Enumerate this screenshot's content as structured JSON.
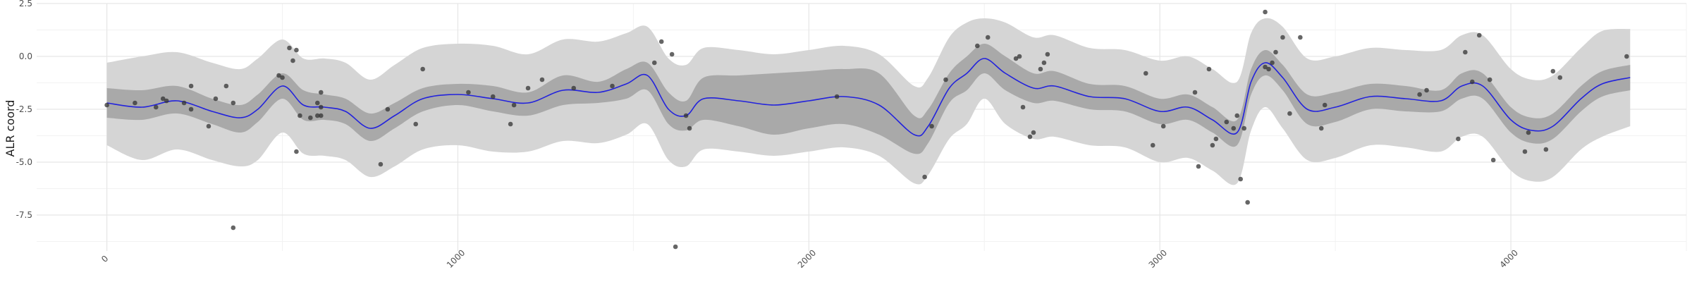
{
  "chart_data": {
    "type": "line",
    "title": "",
    "xlabel": "",
    "ylabel": "ALR coord",
    "xlim": [
      -200,
      4500
    ],
    "ylim": [
      -9.2,
      2.5
    ],
    "grid": true,
    "x_ticks": [
      {
        "value": 0,
        "label": "0"
      },
      {
        "value": 1000,
        "label": "1000"
      },
      {
        "value": 2000,
        "label": "2000"
      },
      {
        "value": 3000,
        "label": "3000"
      },
      {
        "value": 4000,
        "label": "4000"
      }
    ],
    "y_ticks": [
      {
        "value": 2.5,
        "label": "2.5"
      },
      {
        "value": 0,
        "label": "0.0"
      },
      {
        "value": -2.5,
        "label": "-2.5"
      },
      {
        "value": -5,
        "label": "-5.0"
      },
      {
        "value": -7.5,
        "label": "-7.5"
      }
    ],
    "colors": {
      "line": "#2222dd",
      "inner_band": "#a9a9a9",
      "outer_band": "#d5d5d5",
      "points": "#333333",
      "grid_major": "#e6e6e6",
      "grid_minor": "#f2f2f2"
    },
    "series": [
      {
        "kind": "smooth-mean",
        "x": [
          0,
          100,
          200,
          300,
          380,
          430,
          500,
          560,
          620,
          680,
          750,
          820,
          900,
          1000,
          1100,
          1200,
          1300,
          1400,
          1480,
          1540,
          1600,
          1650,
          1700,
          1800,
          1900,
          2000,
          2100,
          2200,
          2300,
          2340,
          2400,
          2450,
          2500,
          2560,
          2640,
          2700,
          2800,
          2900,
          3000,
          3080,
          3150,
          3220,
          3260,
          3300,
          3350,
          3420,
          3500,
          3600,
          3700,
          3800,
          3860,
          3920,
          4000,
          4060,
          4120,
          4200,
          4260,
          4340
        ],
        "y": [
          -2.2,
          -2.4,
          -2.1,
          -2.6,
          -2.9,
          -2.5,
          -1.4,
          -2.3,
          -2.4,
          -2.6,
          -3.4,
          -2.8,
          -2.0,
          -1.8,
          -2.0,
          -2.2,
          -1.6,
          -1.7,
          -1.3,
          -0.9,
          -2.5,
          -2.8,
          -2.0,
          -2.1,
          -2.3,
          -2.1,
          -1.9,
          -2.3,
          -3.7,
          -3.3,
          -1.5,
          -0.8,
          -0.1,
          -0.8,
          -1.5,
          -1.4,
          -1.9,
          -2.0,
          -2.6,
          -2.4,
          -3.0,
          -3.6,
          -1.2,
          -0.3,
          -1.0,
          -2.5,
          -2.4,
          -1.9,
          -2.0,
          -2.1,
          -1.4,
          -1.4,
          -3.0,
          -3.5,
          -3.3,
          -2.0,
          -1.3,
          -1.0
        ],
        "inner_band": [
          [
            -1.5,
            -2.9
          ],
          [
            -1.6,
            -3.0
          ],
          [
            -1.4,
            -2.7
          ],
          [
            -2.0,
            -3.2
          ],
          [
            -2.3,
            -3.6
          ],
          [
            -1.8,
            -3.1
          ],
          [
            -0.8,
            -2.0
          ],
          [
            -1.6,
            -3.0
          ],
          [
            -1.8,
            -3.0
          ],
          [
            -2.0,
            -3.2
          ],
          [
            -2.7,
            -4.0
          ],
          [
            -2.2,
            -3.4
          ],
          [
            -1.5,
            -2.6
          ],
          [
            -1.3,
            -2.3
          ],
          [
            -1.4,
            -2.6
          ],
          [
            -1.7,
            -2.8
          ],
          [
            -0.9,
            -2.3
          ],
          [
            -1.2,
            -2.2
          ],
          [
            -0.6,
            -2.0
          ],
          [
            -0.3,
            -1.6
          ],
          [
            -1.7,
            -3.2
          ],
          [
            -2.1,
            -3.5
          ],
          [
            -1.0,
            -3.0
          ],
          [
            -0.9,
            -3.3
          ],
          [
            -0.8,
            -3.7
          ],
          [
            -0.7,
            -3.4
          ],
          [
            -0.6,
            -3.2
          ],
          [
            -0.8,
            -3.7
          ],
          [
            -2.8,
            -4.6
          ],
          [
            -2.5,
            -4.1
          ],
          [
            -0.8,
            -2.2
          ],
          [
            0.0,
            -1.6
          ],
          [
            0.6,
            -0.8
          ],
          [
            0.0,
            -1.6
          ],
          [
            -0.8,
            -2.2
          ],
          [
            -0.7,
            -2.1
          ],
          [
            -1.3,
            -2.5
          ],
          [
            -1.4,
            -2.6
          ],
          [
            -2.0,
            -3.2
          ],
          [
            -1.8,
            -3.0
          ],
          [
            -2.4,
            -3.6
          ],
          [
            -3.0,
            -4.2
          ],
          [
            -0.6,
            -1.8
          ],
          [
            0.3,
            -0.9
          ],
          [
            -0.4,
            -1.6
          ],
          [
            -1.8,
            -3.2
          ],
          [
            -1.7,
            -3.1
          ],
          [
            -1.3,
            -2.5
          ],
          [
            -1.4,
            -2.6
          ],
          [
            -1.6,
            -2.6
          ],
          [
            -0.8,
            -2.0
          ],
          [
            -0.8,
            -2.0
          ],
          [
            -2.4,
            -3.6
          ],
          [
            -2.9,
            -4.1
          ],
          [
            -2.7,
            -3.9
          ],
          [
            -1.4,
            -2.6
          ],
          [
            -0.7,
            -1.9
          ],
          [
            -0.4,
            -1.6
          ]
        ],
        "outer_band": [
          [
            -0.3,
            -4.2
          ],
          [
            0.0,
            -4.9
          ],
          [
            0.2,
            -4.4
          ],
          [
            -0.3,
            -4.9
          ],
          [
            -0.6,
            -5.2
          ],
          [
            -0.1,
            -4.9
          ],
          [
            0.8,
            -3.6
          ],
          [
            -0.1,
            -4.6
          ],
          [
            -0.1,
            -4.7
          ],
          [
            -0.3,
            -4.9
          ],
          [
            -1.1,
            -5.7
          ],
          [
            -0.4,
            -5.2
          ],
          [
            0.4,
            -4.4
          ],
          [
            0.6,
            -4.2
          ],
          [
            0.5,
            -4.5
          ],
          [
            0.1,
            -4.5
          ],
          [
            0.8,
            -4.0
          ],
          [
            0.7,
            -4.1
          ],
          [
            1.1,
            -3.7
          ],
          [
            1.4,
            -3.2
          ],
          [
            -0.1,
            -4.9
          ],
          [
            -0.4,
            -5.2
          ],
          [
            0.4,
            -4.4
          ],
          [
            0.3,
            -4.5
          ],
          [
            0.1,
            -4.7
          ],
          [
            0.3,
            -4.5
          ],
          [
            0.5,
            -4.3
          ],
          [
            0.1,
            -4.7
          ],
          [
            -1.4,
            -6.0
          ],
          [
            -1.0,
            -5.6
          ],
          [
            0.9,
            -3.9
          ],
          [
            1.6,
            -3.2
          ],
          [
            1.8,
            -2.0
          ],
          [
            1.6,
            -3.2
          ],
          [
            0.9,
            -3.9
          ],
          [
            1.0,
            -3.8
          ],
          [
            0.4,
            -4.2
          ],
          [
            0.3,
            -4.3
          ],
          [
            -0.2,
            -5.0
          ],
          [
            0.0,
            -4.8
          ],
          [
            -0.6,
            -5.4
          ],
          [
            -1.2,
            -6.0
          ],
          [
            1.1,
            -3.5
          ],
          [
            1.8,
            -2.4
          ],
          [
            1.4,
            -3.4
          ],
          [
            -0.1,
            -4.9
          ],
          [
            0.0,
            -4.8
          ],
          [
            0.4,
            -4.2
          ],
          [
            0.3,
            -4.3
          ],
          [
            0.3,
            -4.5
          ],
          [
            1.0,
            -3.8
          ],
          [
            1.0,
            -3.8
          ],
          [
            -0.6,
            -5.4
          ],
          [
            -1.1,
            -5.9
          ],
          [
            -0.9,
            -5.7
          ],
          [
            0.4,
            -4.4
          ],
          [
            1.2,
            -3.8
          ],
          [
            1.3,
            -3.3
          ]
        ]
      },
      {
        "kind": "observations",
        "points": [
          [
            0,
            -2.3
          ],
          [
            80,
            -2.2
          ],
          [
            140,
            -2.4
          ],
          [
            160,
            -2.0
          ],
          [
            170,
            -2.1
          ],
          [
            220,
            -2.2
          ],
          [
            240,
            -1.4
          ],
          [
            240,
            -2.5
          ],
          [
            290,
            -3.3
          ],
          [
            310,
            -2.0
          ],
          [
            340,
            -1.4
          ],
          [
            360,
            -2.2
          ],
          [
            360,
            -8.1
          ],
          [
            490,
            -0.9
          ],
          [
            500,
            -1.0
          ],
          [
            520,
            0.4
          ],
          [
            540,
            0.3
          ],
          [
            530,
            -0.2
          ],
          [
            550,
            -2.8
          ],
          [
            540,
            -4.5
          ],
          [
            580,
            -2.9
          ],
          [
            600,
            -2.8
          ],
          [
            610,
            -1.7
          ],
          [
            600,
            -2.2
          ],
          [
            610,
            -2.4
          ],
          [
            610,
            -2.8
          ],
          [
            780,
            -5.1
          ],
          [
            800,
            -2.5
          ],
          [
            880,
            -3.2
          ],
          [
            900,
            -0.6
          ],
          [
            1030,
            -1.7
          ],
          [
            1100,
            -1.9
          ],
          [
            1150,
            -3.2
          ],
          [
            1160,
            -2.3
          ],
          [
            1200,
            -1.5
          ],
          [
            1240,
            -1.1
          ],
          [
            1330,
            -1.5
          ],
          [
            1440,
            -1.4
          ],
          [
            1560,
            -0.3
          ],
          [
            1580,
            0.7
          ],
          [
            1610,
            0.1
          ],
          [
            1620,
            -9.0
          ],
          [
            1650,
            -2.8
          ],
          [
            1660,
            -3.4
          ],
          [
            2080,
            -1.9
          ],
          [
            2330,
            -5.7
          ],
          [
            2350,
            -3.3
          ],
          [
            2390,
            -1.1
          ],
          [
            2480,
            0.5
          ],
          [
            2510,
            0.9
          ],
          [
            2590,
            -0.1
          ],
          [
            2600,
            0.0
          ],
          [
            2610,
            -2.4
          ],
          [
            2630,
            -3.8
          ],
          [
            2640,
            -3.6
          ],
          [
            2660,
            -0.6
          ],
          [
            2670,
            -0.3
          ],
          [
            2680,
            0.1
          ],
          [
            2960,
            -0.8
          ],
          [
            2980,
            -4.2
          ],
          [
            3010,
            -3.3
          ],
          [
            3100,
            -1.7
          ],
          [
            3110,
            -5.2
          ],
          [
            3140,
            -0.6
          ],
          [
            3150,
            -4.2
          ],
          [
            3160,
            -3.9
          ],
          [
            3190,
            -3.1
          ],
          [
            3210,
            -3.4
          ],
          [
            3220,
            -2.8
          ],
          [
            3230,
            -5.8
          ],
          [
            3240,
            -3.4
          ],
          [
            3250,
            -6.9
          ],
          [
            3300,
            2.1
          ],
          [
            3300,
            -0.5
          ],
          [
            3310,
            -0.6
          ],
          [
            3320,
            -0.3
          ],
          [
            3330,
            0.2
          ],
          [
            3350,
            0.9
          ],
          [
            3370,
            -2.7
          ],
          [
            3400,
            0.9
          ],
          [
            3460,
            -3.4
          ],
          [
            3470,
            -2.3
          ],
          [
            3740,
            -1.8
          ],
          [
            3760,
            -1.6
          ],
          [
            3850,
            -3.9
          ],
          [
            3870,
            0.2
          ],
          [
            3890,
            -1.2
          ],
          [
            3910,
            1.0
          ],
          [
            3940,
            -1.1
          ],
          [
            3950,
            -4.9
          ],
          [
            4040,
            -4.5
          ],
          [
            4050,
            -3.6
          ],
          [
            4100,
            -4.4
          ],
          [
            4120,
            -0.7
          ],
          [
            4140,
            -1.0
          ],
          [
            4330,
            0.0
          ]
        ]
      }
    ]
  }
}
